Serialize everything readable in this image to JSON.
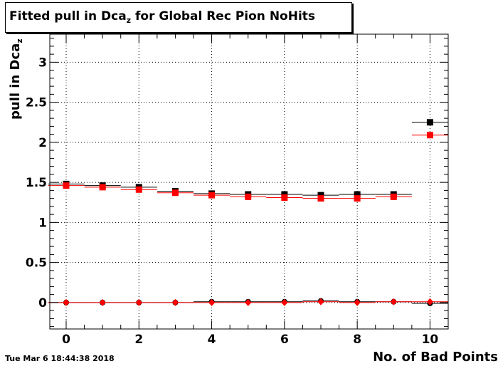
{
  "title": {
    "main": "Fitted pull in Dca",
    "sub": "z",
    "rest": " for Global Rec Pion NoHits"
  },
  "timestamp": "Tue Mar  6 18:44:38 2018",
  "chart_data": {
    "type": "scatter",
    "title": "Fitted pull in Dca_z for Global Rec Pion NoHits",
    "xlabel": "No. of Bad Points",
    "ylabel": "pull in Dca_z",
    "xlim": [
      -0.45,
      10.5
    ],
    "ylim": [
      -0.33,
      3.35
    ],
    "grid": true,
    "x_ticks": [
      0,
      2,
      4,
      6,
      8,
      10
    ],
    "x_tick_labels": [
      "0",
      "2",
      "4",
      "6",
      "8",
      "10"
    ],
    "y_ticks": [
      0,
      0.5,
      1,
      1.5,
      2,
      2.5,
      3
    ],
    "y_tick_labels": [
      "0",
      "0.5",
      "1",
      "1.5",
      "2",
      "2.5",
      "3"
    ],
    "series": [
      {
        "marker": "square",
        "color": "#000000",
        "x": [
          0,
          1,
          2,
          3,
          4,
          5,
          6,
          7,
          8,
          9,
          10
        ],
        "y": [
          1.48,
          1.46,
          1.44,
          1.39,
          1.36,
          1.35,
          1.35,
          1.34,
          1.35,
          1.35,
          2.25
        ]
      },
      {
        "marker": "square",
        "color": "#ff0000",
        "x": [
          0,
          1,
          2,
          3,
          4,
          5,
          6,
          7,
          8,
          9,
          10
        ],
        "y": [
          1.46,
          1.44,
          1.41,
          1.37,
          1.34,
          1.32,
          1.31,
          1.3,
          1.3,
          1.32,
          2.09
        ]
      },
      {
        "marker": "circle",
        "color": "#000000",
        "x": [
          0,
          1,
          2,
          3,
          4,
          5,
          6,
          7,
          8,
          9,
          10
        ],
        "y": [
          0.0,
          0.0,
          0.0,
          0.0,
          0.01,
          0.01,
          0.01,
          0.02,
          0.01,
          0.01,
          -0.01
        ]
      },
      {
        "marker": "diamond",
        "color": "#ff0000",
        "x": [
          0,
          1,
          2,
          3,
          4,
          5,
          6,
          7,
          8,
          9,
          10
        ],
        "y": [
          0.0,
          0.0,
          0.0,
          0.0,
          0.0,
          0.0,
          0.0,
          0.01,
          0.0,
          0.01,
          0.01
        ]
      }
    ]
  }
}
